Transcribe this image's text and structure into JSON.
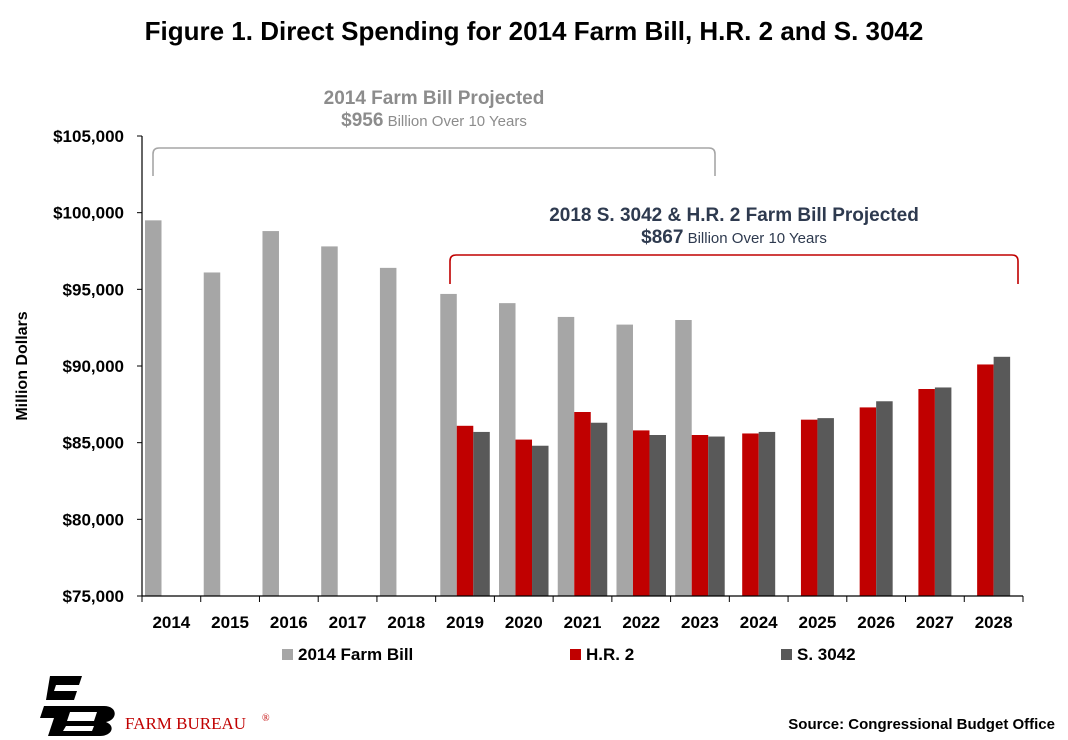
{
  "title": "Figure 1. Direct Spending for 2014 Farm Bill, H.R. 2 and S. 3042",
  "chart_data": {
    "type": "bar",
    "ylabel": "Million Dollars",
    "xlabel": "",
    "ylim": [
      75000,
      105000
    ],
    "yticks": [
      75000,
      80000,
      85000,
      90000,
      95000,
      100000,
      105000
    ],
    "ytick_labels": [
      "$75,000",
      "$80,000",
      "$85,000",
      "$90,000",
      "$95,000",
      "$100,000",
      "$105,000"
    ],
    "categories": [
      "2014",
      "2015",
      "2016",
      "2017",
      "2018",
      "2019",
      "2020",
      "2021",
      "2022",
      "2023",
      "2024",
      "2025",
      "2026",
      "2027",
      "2028"
    ],
    "series": [
      {
        "name": "2014 Farm Bill",
        "color": "#a6a6a6",
        "values": [
          99500,
          96100,
          98800,
          97800,
          96400,
          94700,
          94100,
          93200,
          92700,
          93000,
          null,
          null,
          null,
          null,
          null
        ]
      },
      {
        "name": "H.R. 2",
        "color": "#c00000",
        "values": [
          null,
          null,
          null,
          null,
          null,
          86100,
          85200,
          87000,
          85800,
          85500,
          85600,
          86500,
          87300,
          88500,
          90100
        ]
      },
      {
        "name": "S. 3042",
        "color": "#595959",
        "values": [
          null,
          null,
          null,
          null,
          null,
          85700,
          84800,
          86300,
          85500,
          85400,
          85700,
          86600,
          87700,
          88600,
          90600
        ]
      }
    ],
    "grid": false,
    "legend": "bottom",
    "annotations": [
      {
        "id": "farm-bill-2014",
        "title": "2014 Farm Bill Projected",
        "amount": "$956",
        "suffix": " Billion Over 10 Years",
        "from": "2014",
        "to": "2023",
        "color": "#a6a6a6",
        "text_color": "#8c8c8c"
      },
      {
        "id": "farm-bill-2018",
        "title": "2018 S. 3042 & H.R. 2 Farm Bill Projected",
        "amount": "$867",
        "suffix": " Billion Over 10 Years",
        "from": "2019",
        "to": "2028",
        "color": "#c00000",
        "text_color": "#2e3a4f"
      }
    ]
  },
  "footer": {
    "brand": "FARM BUREAU",
    "brand_mark": "®",
    "source": "Source: Congressional Budget Office"
  },
  "colors": {
    "brand_red": "#c00000",
    "logo_black": "#000000"
  }
}
